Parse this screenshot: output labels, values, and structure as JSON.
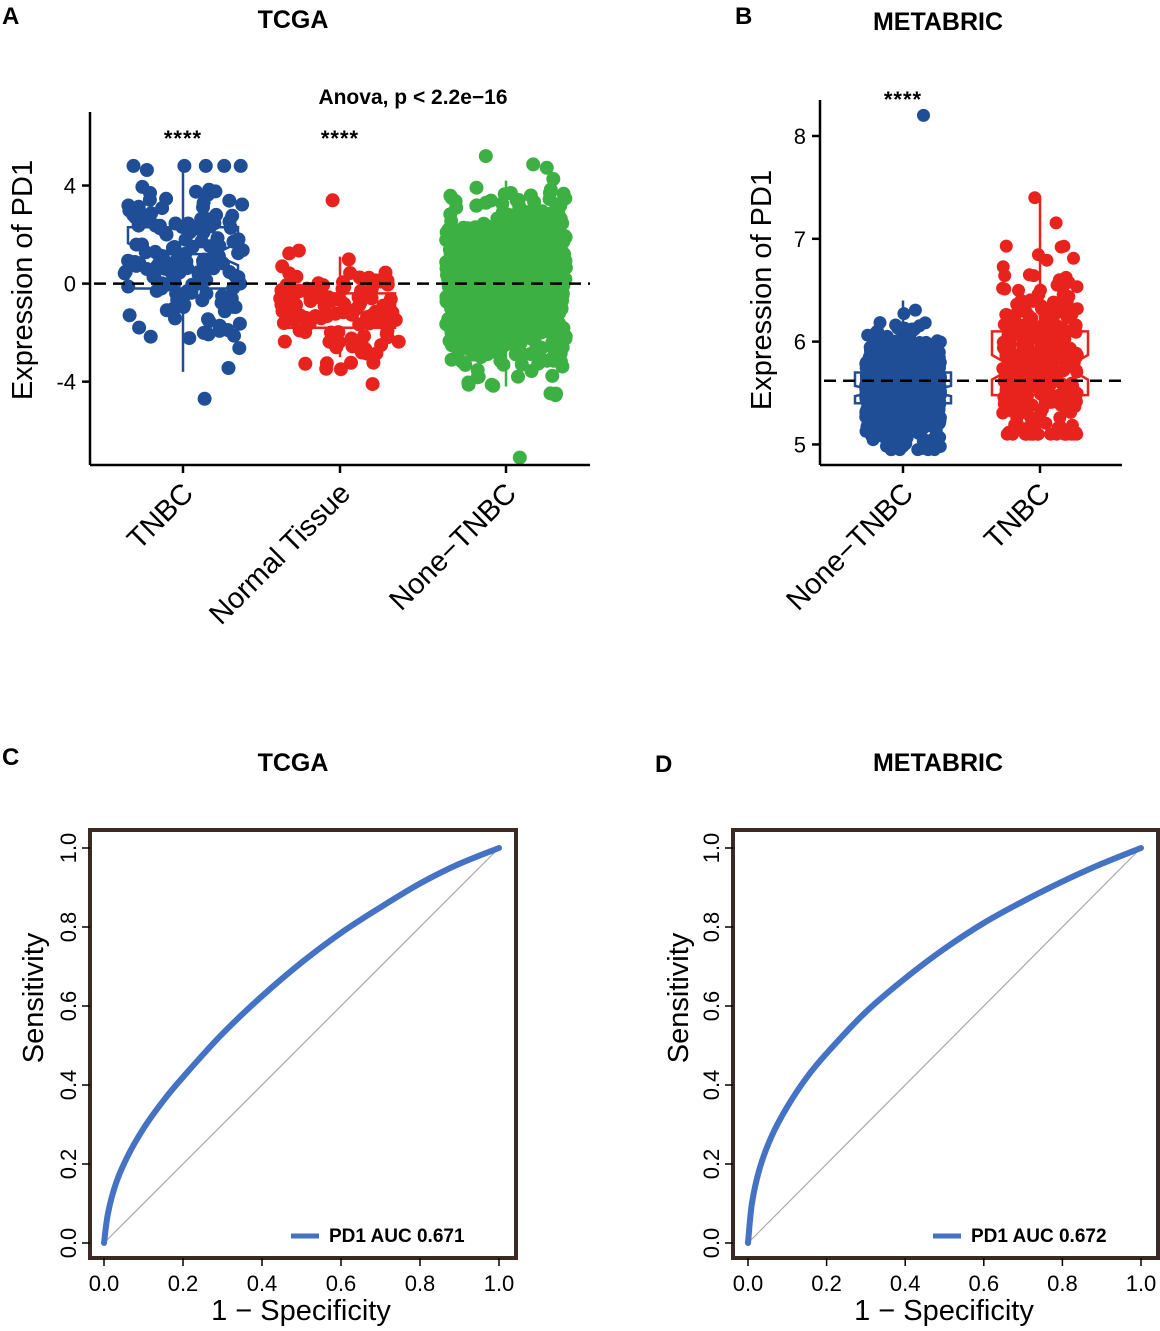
{
  "panels": {
    "A": "A",
    "B": "B",
    "C": "C",
    "D": "D"
  },
  "chart_data": [
    {
      "id": "A",
      "type": "scatter",
      "subtype": "jitter-boxplot",
      "title": "TCGA",
      "ylabel": "Expression of PD1",
      "xlabel": "",
      "ylim": [
        -7.4,
        7.0
      ],
      "yticks": [
        -4,
        0,
        4
      ],
      "ytick_labels": [
        "-4",
        "0",
        "4"
      ],
      "reference_line": 0,
      "annotation": "Anova, p < 2.2e−16",
      "categories": [
        "TNBC",
        "Normal Tissue",
        "None−TNBC"
      ],
      "significance": [
        "****",
        "****",
        ""
      ],
      "series": [
        {
          "name": "TNBC",
          "color": "#1f4e96",
          "n": 160,
          "q1": -0.2,
          "median": 1.2,
          "q3": 2.3,
          "notch": 0.45,
          "whisker_low": -3.6,
          "whisker_high": 4.8,
          "min": -4.7,
          "max": 4.8
        },
        {
          "name": "Normal Tissue",
          "color": "#e8231d",
          "n": 110,
          "q1": -1.8,
          "median": -1.2,
          "q3": -0.4,
          "notch": 0.25,
          "whisker_low": -3.0,
          "whisker_high": 1.1,
          "min": -4.1,
          "max": 3.4
        },
        {
          "name": "None−TNBC",
          "color": "#3cb043",
          "n": 1000,
          "q1": -1.1,
          "median": -0.1,
          "q3": 1.0,
          "notch": 0.12,
          "whisker_low": -4.2,
          "whisker_high": 4.2,
          "min": -7.1,
          "max": 5.2
        }
      ]
    },
    {
      "id": "B",
      "type": "scatter",
      "subtype": "jitter-boxplot",
      "title": "METABRIC",
      "ylabel": "Expression of PD1",
      "xlabel": "",
      "ylim": [
        4.8,
        8.35
      ],
      "yticks": [
        5,
        6,
        7,
        8
      ],
      "ytick_labels": [
        "5",
        "6",
        "7",
        "8"
      ],
      "reference_line": 5.62,
      "categories": [
        "None−TNBC",
        "TNBC"
      ],
      "significance": [
        "****",
        ""
      ],
      "series": [
        {
          "name": "None−TNBC",
          "color": "#1f4e96",
          "n": 1200,
          "q1": 5.4,
          "median": 5.52,
          "q3": 5.7,
          "notch": 0.05,
          "whisker_low": 4.95,
          "whisker_high": 6.4,
          "min": 4.95,
          "max": 8.2
        },
        {
          "name": "TNBC",
          "color": "#e8231d",
          "n": 300,
          "q1": 5.48,
          "median": 5.75,
          "q3": 6.1,
          "notch": 0.12,
          "whisker_low": 5.1,
          "whisker_high": 7.4,
          "min": 5.1,
          "max": 7.4
        }
      ]
    },
    {
      "id": "C",
      "type": "line",
      "subtype": "roc",
      "title": "TCGA",
      "xlabel": "1 − Specificity",
      "ylabel": "Sensitivity",
      "xlim": [
        0,
        1
      ],
      "ylim": [
        0,
        1
      ],
      "ticks": [
        0.0,
        0.2,
        0.4,
        0.6,
        0.8,
        1.0
      ],
      "tick_labels": [
        "0.0",
        "0.2",
        "0.4",
        "0.6",
        "0.8",
        "1.0"
      ],
      "series": [
        {
          "name": "PD1",
          "auc": 0.671,
          "color": "#4472c4",
          "x": [
            0,
            0.01,
            0.03,
            0.06,
            0.1,
            0.15,
            0.2,
            0.3,
            0.4,
            0.5,
            0.6,
            0.7,
            0.8,
            0.9,
            1.0
          ],
          "y": [
            0,
            0.075,
            0.15,
            0.22,
            0.29,
            0.36,
            0.42,
            0.53,
            0.625,
            0.71,
            0.785,
            0.85,
            0.91,
            0.96,
            1.0
          ]
        }
      ],
      "legend_text": "PD1 AUC 0.671",
      "legend_position": "bottom-right",
      "diagonal": true
    },
    {
      "id": "D",
      "type": "line",
      "subtype": "roc",
      "title": "METABRIC",
      "xlabel": "1 − Specificity",
      "ylabel": "Sensitivity",
      "xlim": [
        0,
        1
      ],
      "ylim": [
        0,
        1
      ],
      "ticks": [
        0.0,
        0.2,
        0.4,
        0.6,
        0.8,
        1.0
      ],
      "tick_labels": [
        "0.0",
        "0.2",
        "0.4",
        "0.6",
        "0.8",
        "1.0"
      ],
      "series": [
        {
          "name": "PD1",
          "auc": 0.672,
          "color": "#4472c4",
          "x": [
            0,
            0.01,
            0.03,
            0.06,
            0.1,
            0.15,
            0.2,
            0.3,
            0.4,
            0.5,
            0.6,
            0.7,
            0.8,
            0.9,
            1.0
          ],
          "y": [
            0,
            0.1,
            0.19,
            0.27,
            0.345,
            0.42,
            0.48,
            0.585,
            0.67,
            0.745,
            0.81,
            0.865,
            0.915,
            0.96,
            1.0
          ]
        }
      ],
      "legend_text": "PD1 AUC 0.672",
      "legend_position": "bottom-right",
      "diagonal": true
    }
  ]
}
